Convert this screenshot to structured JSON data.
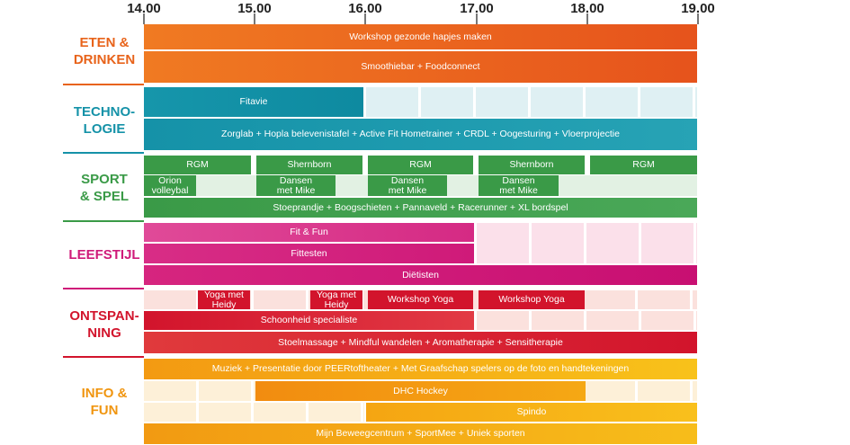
{
  "times": [
    "14.00",
    "15.00",
    "16.00",
    "17.00",
    "18.00",
    "19.00"
  ],
  "categories": {
    "eten": {
      "line1": "ETEN &",
      "line2": "DRINKEN",
      "color": "#e8631a"
    },
    "tech": {
      "line1": "TECHNO-",
      "line2": "LOGIE",
      "color": "#1592a8"
    },
    "sport": {
      "line1": "SPORT",
      "line2": "& SPEL",
      "color": "#3a9a47"
    },
    "leef": {
      "line1": "LEEFSTIJL",
      "color": "#cf1a79"
    },
    "ont": {
      "line1": "ONTSPAN-",
      "line2": "NING",
      "color": "#d2142c"
    },
    "info": {
      "line1": "INFO &",
      "line2": "FUN",
      "color": "#f0950f"
    }
  },
  "events": {
    "workshop_gezond": "Workshop gezonde hapjes maken",
    "smoothiebar": "Smoothiebar  +  Foodconnect",
    "fitavie": "Fitavie",
    "tech_row": "Zorglab  +  Hopla belevenistafel  +  Active Fit Hometrainer  +  CRDL  +  Oogesturing  +  Vloerprojectie",
    "rgm": "RGM",
    "shernborn": "Shernborn",
    "orion_1": "Orion",
    "orion_2": "volleybal",
    "dansen_1": "Dansen",
    "dansen_2": "met Mike",
    "sport_row": "Stoeprandje  +  Boogschieten  +  Pannaveld  +  Racerunner  +  XL bordspel",
    "fitfun": "Fit & Fun",
    "fittesten": "Fittesten",
    "dietisten": "Diëtisten",
    "yoga_1": "Yoga met",
    "yoga_2": "Heidy",
    "workshop_yoga": "Workshop Yoga",
    "schoonheid": "Schoonheid specialiste",
    "ont_row": "Stoelmassage  +  Mindful wandelen  +  Aromatherapie  +  Sensitherapie",
    "info_row": "Muziek  +  Presentatie door PEERtoftheater  +  Met Graafschap spelers op de foto en handtekeningen",
    "dhc": "DHC Hockey",
    "spindo": "Spindo",
    "info_last": "Mijn Beweegcentrum  +  SportMee  +  Uniek sporten"
  }
}
